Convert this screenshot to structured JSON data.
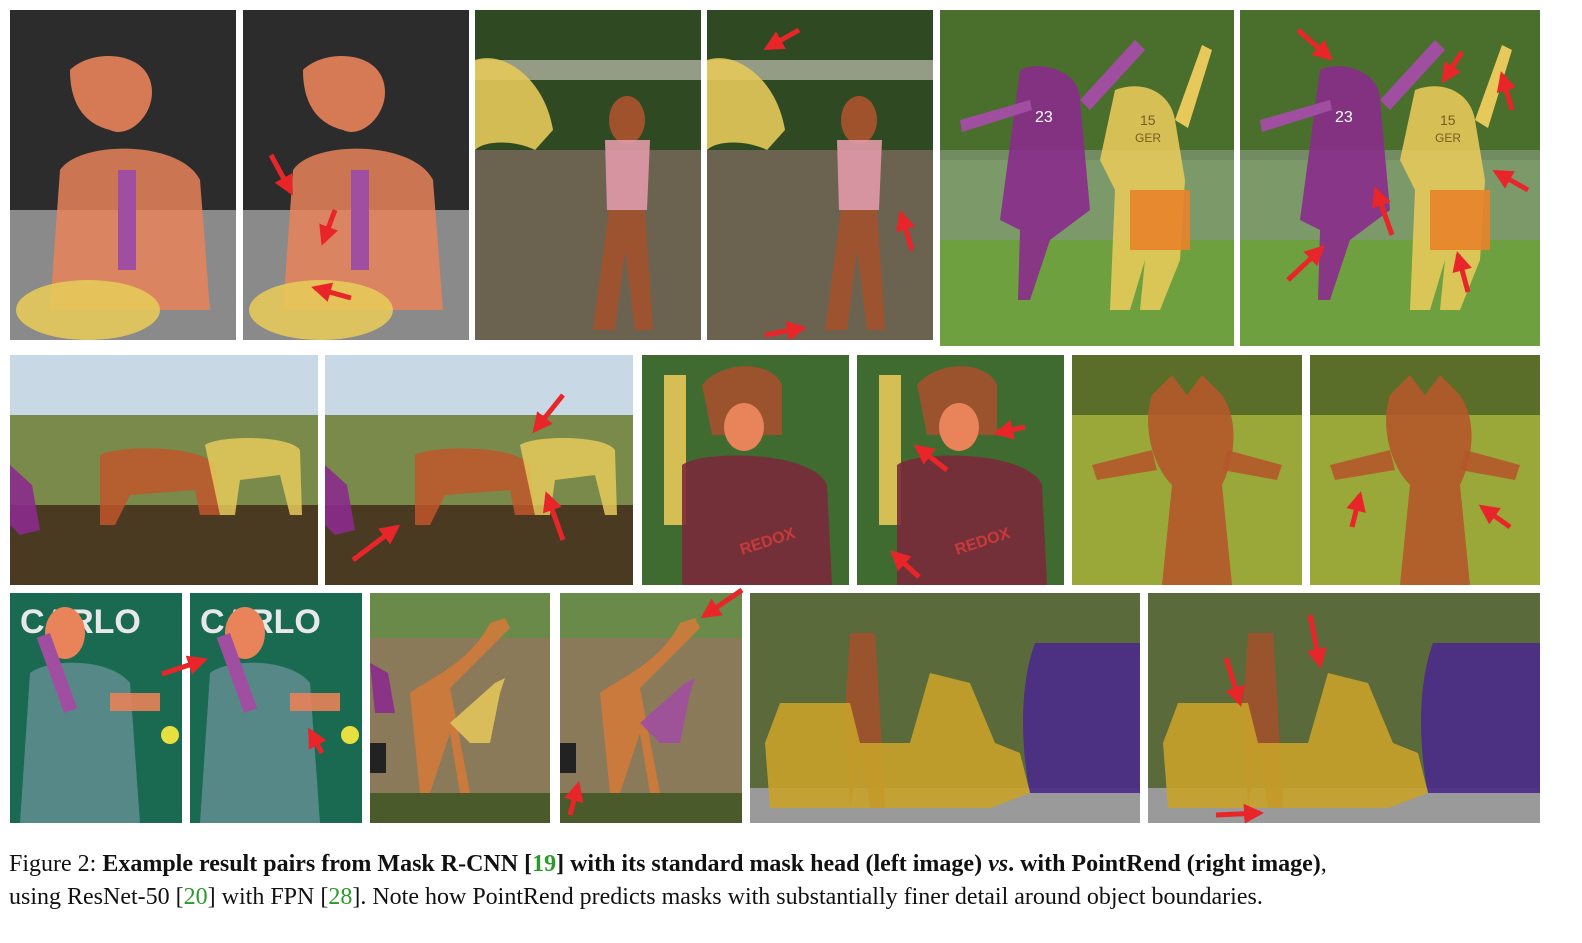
{
  "figure": {
    "caption": {
      "label": "Figure 2:",
      "bold_pre": "Example result pairs from Mask R-CNN [",
      "cite_mask_rcnn": "19",
      "bold_mid1": "] with its standard mask head (left image) ",
      "vs_text": "vs",
      "bold_mid2": ". with PointRend (right image)",
      "after_bold": ",",
      "line2_pre": "using ResNet-50 [",
      "cite_resnet": "20",
      "line2_mid": "] with FPN [",
      "cite_fpn": "28",
      "line2_post": "]. Note how PointRend predicts masks with substantially finer detail around object boundaries."
    },
    "colors": {
      "mask_orange": "#e8835a",
      "mask_yellow": "#e6c95a",
      "mask_purple": "#8a2b8c",
      "mask_brown": "#a0522d",
      "arrow_red": "#e8262a",
      "cite_green": "#2a9a2a"
    },
    "panels": [
      {
        "name": "child-bowl",
        "labels": []
      },
      {
        "name": "horse-girl",
        "labels": []
      },
      {
        "name": "frisbee-players",
        "labels": [
          "23",
          "15",
          "GER"
        ]
      },
      {
        "name": "zebras",
        "labels": []
      },
      {
        "name": "baseball-batter",
        "labels": [
          "REDOX"
        ]
      },
      {
        "name": "giraffe-head",
        "labels": []
      },
      {
        "name": "tennis-player",
        "labels": [
          "CARLO"
        ]
      },
      {
        "name": "giraffes",
        "labels": []
      },
      {
        "name": "motorcycle-car",
        "labels": []
      }
    ]
  }
}
